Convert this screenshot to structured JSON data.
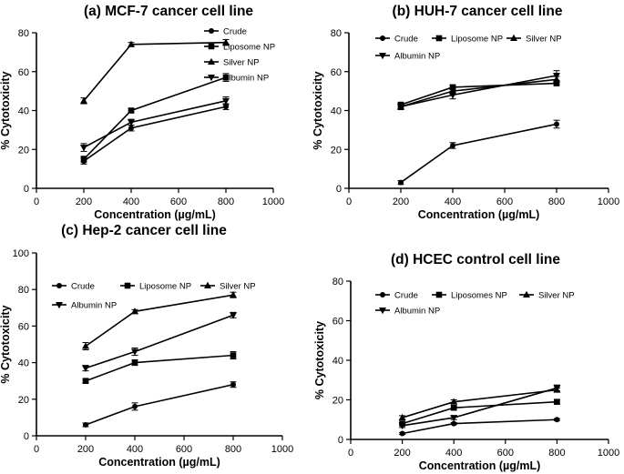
{
  "chart_data": [
    {
      "type": "line",
      "title": "(a) MCF-7 cancer cell line",
      "xlabel": "Concentration (µg/mL)",
      "ylabel": "% Cytotoxicity",
      "xlim": [
        0,
        1000
      ],
      "ylim": [
        0,
        80
      ],
      "xticks": [
        0,
        200,
        400,
        600,
        800,
        1000
      ],
      "yticks": [
        0,
        20,
        40,
        60,
        80
      ],
      "x": [
        200,
        400,
        800
      ],
      "legend_layout": "column",
      "series": [
        {
          "name": "Crude",
          "marker": "circle",
          "values": [
            14,
            31,
            42
          ],
          "errors": [
            1.5,
            1.5,
            1.5
          ]
        },
        {
          "name": "Liposome NP",
          "marker": "square",
          "values": [
            15,
            40,
            57
          ],
          "errors": [
            1.5,
            1,
            2
          ]
        },
        {
          "name": "Silver NP",
          "marker": "triangle-up",
          "values": [
            45,
            74,
            75
          ],
          "errors": [
            1.5,
            1,
            1.5
          ]
        },
        {
          "name": "Albumin NP",
          "marker": "triangle-down",
          "values": [
            21,
            34,
            45
          ],
          "errors": [
            2,
            1.5,
            2
          ]
        }
      ]
    },
    {
      "type": "line",
      "title": "(b) HUH-7 cancer cell line",
      "xlabel": "Concentration (µg/mL)",
      "ylabel": "% Cytotoxicity",
      "xlim": [
        0,
        1000
      ],
      "ylim": [
        0,
        80
      ],
      "xticks": [
        0,
        200,
        400,
        600,
        800,
        1000
      ],
      "yticks": [
        0,
        20,
        40,
        60,
        80
      ],
      "x": [
        200,
        400,
        800
      ],
      "legend_layout": "row",
      "series": [
        {
          "name": "Crude",
          "marker": "circle",
          "values": [
            3,
            22,
            33
          ],
          "errors": [
            1,
            1.5,
            2
          ]
        },
        {
          "name": "Liposome NP",
          "marker": "square",
          "values": [
            43,
            52,
            54
          ],
          "errors": [
            1,
            1,
            1
          ]
        },
        {
          "name": "Silver NP",
          "marker": "triangle-up",
          "values": [
            42,
            50,
            56
          ],
          "errors": [
            1.5,
            1.5,
            1.5
          ]
        },
        {
          "name": "Albumin NP",
          "marker": "triangle-down",
          "values": [
            42,
            48,
            58
          ],
          "errors": [
            1.5,
            2,
            2.5
          ]
        }
      ]
    },
    {
      "type": "line",
      "title": "(c) Hep-2 cancer cell line",
      "xlabel": "Concentration (µg/mL)",
      "ylabel": "% Cytotoxicity",
      "xlim": [
        0,
        1000
      ],
      "ylim": [
        0,
        100
      ],
      "xticks": [
        0,
        200,
        400,
        600,
        800,
        1000
      ],
      "yticks": [
        0,
        20,
        40,
        60,
        80,
        100
      ],
      "x": [
        200,
        400,
        800
      ],
      "legend_layout": "row",
      "series": [
        {
          "name": "Crude",
          "marker": "circle",
          "values": [
            6,
            16,
            28
          ],
          "errors": [
            1,
            2,
            1.5
          ]
        },
        {
          "name": "Liposome NP",
          "marker": "square",
          "values": [
            30,
            40,
            44
          ],
          "errors": [
            1,
            1.5,
            2
          ]
        },
        {
          "name": "Silver NP",
          "marker": "triangle-up",
          "values": [
            49,
            68,
            77
          ],
          "errors": [
            2,
            1,
            1.5
          ]
        },
        {
          "name": "Albumin NP",
          "marker": "triangle-down",
          "values": [
            37,
            46,
            66
          ],
          "errors": [
            1.5,
            2,
            1.5
          ]
        }
      ]
    },
    {
      "type": "line",
      "title": "(d) HCEC control cell line",
      "xlabel": "Concentration (µg/mL)",
      "ylabel": "% Cytotoxicity",
      "xlim": [
        0,
        1000
      ],
      "ylim": [
        0,
        80
      ],
      "xticks": [
        0,
        200,
        400,
        600,
        800,
        1000
      ],
      "yticks": [
        0,
        20,
        40,
        60,
        80
      ],
      "x": [
        200,
        400,
        800
      ],
      "legend_layout": "row",
      "series": [
        {
          "name": "Crude",
          "marker": "circle",
          "values": [
            3,
            8,
            10
          ],
          "errors": [
            0.5,
            0.5,
            0.5
          ]
        },
        {
          "name": "Liposomes NP",
          "marker": "square",
          "values": [
            8,
            16,
            19
          ],
          "errors": [
            0.5,
            1,
            1
          ]
        },
        {
          "name": "Silver NP",
          "marker": "triangle-up",
          "values": [
            11,
            19,
            25
          ],
          "errors": [
            1,
            1,
            1
          ]
        },
        {
          "name": "Albumin NP",
          "marker": "triangle-down",
          "values": [
            7,
            11,
            26
          ],
          "errors": [
            1,
            1,
            1.5
          ]
        }
      ]
    }
  ]
}
